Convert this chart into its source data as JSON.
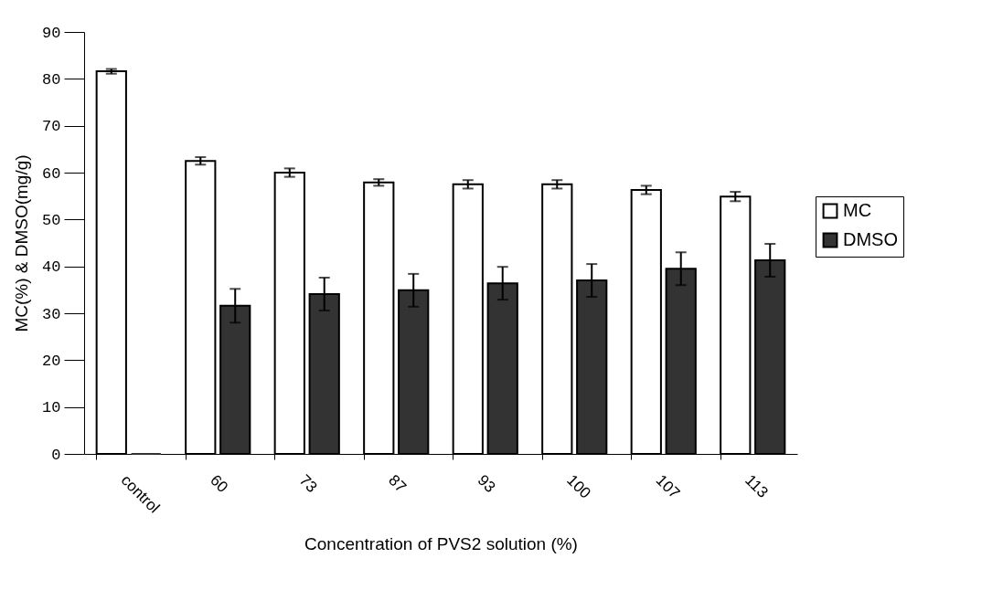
{
  "chart_data": {
    "type": "bar",
    "xlabel": "Concentration of PVS2 solution (%)",
    "ylabel": "MC(%) & DMSO(mg/g)",
    "categories": [
      "control",
      "60",
      "73",
      "87",
      "93",
      "100",
      "107",
      "113"
    ],
    "series": [
      {
        "name": "MC",
        "color": "#ffffff",
        "values": [
          81.6,
          62.5,
          60.0,
          57.9,
          57.5,
          57.5,
          56.3,
          54.9
        ],
        "errors": [
          0.5,
          0.8,
          0.9,
          0.7,
          0.9,
          0.9,
          0.9,
          1.0
        ]
      },
      {
        "name": "DMSO",
        "color": "#333333",
        "values": [
          0,
          31.6,
          34.1,
          34.9,
          36.4,
          37.0,
          39.5,
          41.3
        ],
        "errors": [
          null,
          3.6,
          3.5,
          3.5,
          3.5,
          3.5,
          3.5,
          3.5
        ]
      }
    ],
    "ylim": [
      0,
      90
    ],
    "yticks": [
      0,
      10,
      20,
      30,
      40,
      50,
      60,
      70,
      80,
      90
    ],
    "grid": false,
    "legend": "right"
  }
}
